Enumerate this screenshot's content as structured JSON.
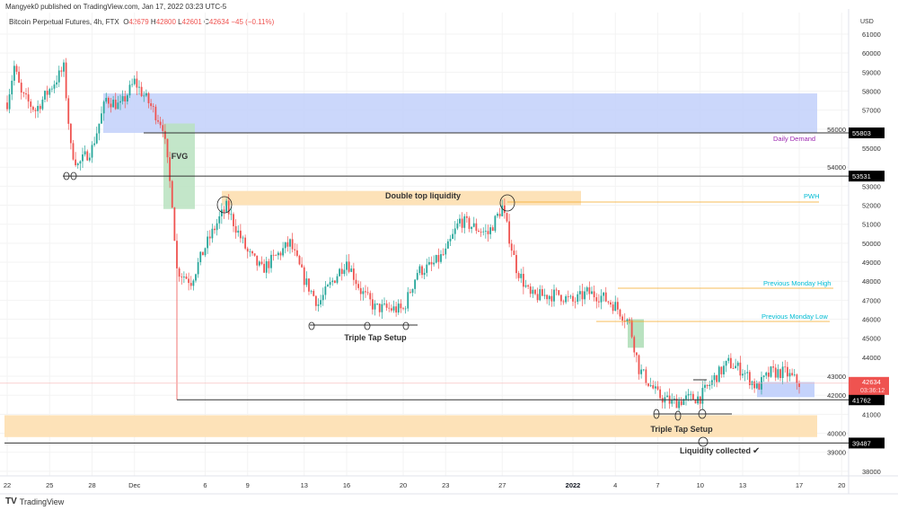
{
  "header": {
    "published": "Mangyek0 published on TradingView.com, Jan 17, 2022 03:23 UTC-5",
    "symbol": "Bitcoin Perpetual Futures, 4h, FTX",
    "o_label": "O",
    "o": "42679",
    "h_label": "H",
    "h": "42800",
    "l_label": "L",
    "l": "42601",
    "c_label": "C",
    "c": "42634",
    "change": "−45 (−0.11%)"
  },
  "footer": {
    "logo_text": "TradingView",
    "logo_icon": "tradingview-logo-icon"
  },
  "chart_data": {
    "type": "candlestick",
    "interval": "4h",
    "currency": "USD",
    "ylim": [
      37500,
      62000
    ],
    "y_ticks": [
      38000,
      39000,
      40000,
      41000,
      42000,
      43000,
      44000,
      45000,
      46000,
      47000,
      48000,
      49000,
      50000,
      51000,
      52000,
      53000,
      54000,
      55000,
      56000,
      57000,
      58000,
      59000,
      60000,
      61000
    ],
    "x_ticks": [
      {
        "label": "22",
        "date": "2021-11-22"
      },
      {
        "label": "25",
        "date": "2021-11-25"
      },
      {
        "label": "28",
        "date": "2021-11-28"
      },
      {
        "label": "Dec",
        "date": "2021-12-01"
      },
      {
        "label": "6",
        "date": "2021-12-06"
      },
      {
        "label": "9",
        "date": "2021-12-09"
      },
      {
        "label": "13",
        "date": "2021-12-13"
      },
      {
        "label": "16",
        "date": "2021-12-16"
      },
      {
        "label": "20",
        "date": "2021-12-20"
      },
      {
        "label": "23",
        "date": "2021-12-23"
      },
      {
        "label": "27",
        "date": "2021-12-27"
      },
      {
        "label": "2022",
        "date": "2022-01-01"
      },
      {
        "label": "4",
        "date": "2022-01-04"
      },
      {
        "label": "7",
        "date": "2022-01-07"
      },
      {
        "label": "10",
        "date": "2022-01-10"
      },
      {
        "label": "13",
        "date": "2022-01-13"
      },
      {
        "label": "17",
        "date": "2022-01-17"
      },
      {
        "label": "20",
        "date": "2022-01-20"
      }
    ],
    "price_path": [
      [
        "2021-11-22",
        57400
      ],
      [
        "2021-11-22T12",
        59300
      ],
      [
        "2021-11-23",
        57800
      ],
      [
        "2021-11-24",
        57000
      ],
      [
        "2021-11-25",
        58100
      ],
      [
        "2021-11-26",
        59200
      ],
      [
        "2021-11-26T12",
        55000
      ],
      [
        "2021-11-27",
        54100
      ],
      [
        "2021-11-28",
        55000
      ],
      [
        "2021-11-29",
        57600
      ],
      [
        "2021-11-30",
        57200
      ],
      [
        "2021-12-01",
        58500
      ],
      [
        "2021-12-02",
        57400
      ],
      [
        "2021-12-03",
        56200
      ],
      [
        "2021-12-03T16",
        52200
      ],
      [
        "2021-12-04",
        48600
      ],
      [
        "2021-12-05",
        48000
      ],
      [
        "2021-12-06",
        49800
      ],
      [
        "2021-12-07",
        51300
      ],
      [
        "2021-12-07T12",
        51900
      ],
      [
        "2021-12-09",
        49500
      ],
      [
        "2021-12-10",
        48600
      ],
      [
        "2021-12-12",
        50000
      ],
      [
        "2021-12-13",
        48100
      ],
      [
        "2021-12-14",
        46800
      ],
      [
        "2021-12-15",
        48000
      ],
      [
        "2021-12-16",
        49100
      ],
      [
        "2021-12-17",
        47500
      ],
      [
        "2021-12-18",
        46600
      ],
      [
        "2021-12-20",
        46500
      ],
      [
        "2021-12-21",
        48500
      ],
      [
        "2021-12-22",
        48800
      ],
      [
        "2021-12-23",
        49500
      ],
      [
        "2021-12-24",
        51200
      ],
      [
        "2021-12-26",
        50500
      ],
      [
        "2021-12-27",
        51900
      ],
      [
        "2021-12-28",
        48700
      ],
      [
        "2021-12-29",
        47200
      ],
      [
        "2021-12-31",
        47300
      ],
      [
        "2022-01-01",
        46900
      ],
      [
        "2022-01-02",
        47400
      ],
      [
        "2022-01-03",
        47200
      ],
      [
        "2022-01-04",
        46700
      ],
      [
        "2022-01-05",
        45800
      ],
      [
        "2022-01-05T16",
        43400
      ],
      [
        "2022-01-07",
        42000
      ],
      [
        "2022-01-08",
        41600
      ],
      [
        "2022-01-09",
        41800
      ],
      [
        "2022-01-10",
        41900
      ],
      [
        "2022-01-11",
        42900
      ],
      [
        "2022-01-12",
        43700
      ],
      [
        "2022-01-13",
        43300
      ],
      [
        "2022-01-14",
        42400
      ],
      [
        "2022-01-15",
        43200
      ],
      [
        "2022-01-16",
        43200
      ],
      [
        "2022-01-17",
        42634
      ]
    ],
    "price_labels": [
      {
        "value": 55803,
        "text": "55803",
        "color": "#000000"
      },
      {
        "value": 53531,
        "text": "53531",
        "color": "#000000"
      },
      {
        "value": 41762,
        "text": "41762",
        "color": "#000000"
      },
      {
        "value": 39487,
        "text": "39487",
        "color": "#000000"
      }
    ],
    "current_price": {
      "text": "42634",
      "countdown": "03:36:12",
      "color": "#ef5350"
    },
    "annotations": {
      "daily_demand": "Daily Demand",
      "fvg": "FVG",
      "double_top": "Double top liquidity",
      "pwh": "PWH",
      "prev_monday_high": "Previous Monday High",
      "prev_monday_low": "Previous Monday Low",
      "triple_tap_1": "Triple Tap Setup",
      "triple_tap_2": "Triple Tap Setup",
      "liquidity_collected": "Liquidity collected"
    },
    "colors": {
      "up": "#26a69a",
      "down": "#ef5350",
      "demand_zone": "#c5d3fb",
      "liquidity_zone": "#fde2b8",
      "fvg_zone": "#b9e2c0",
      "daily_demand_label": "#9c27b0",
      "level_label": "#00bcd4",
      "level_line": "#f5a623"
    }
  }
}
